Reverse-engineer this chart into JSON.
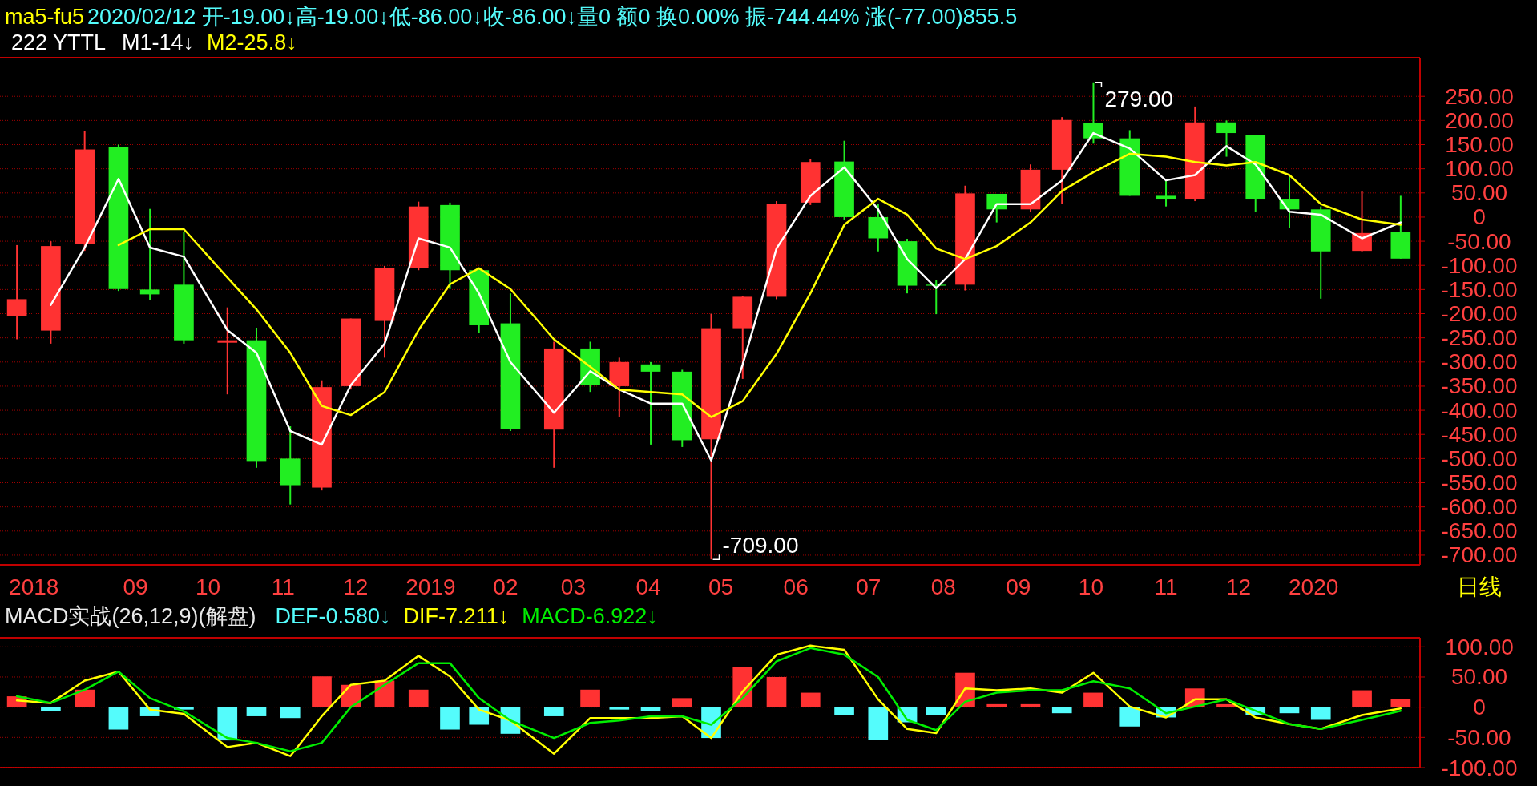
{
  "chart_data": [
    {
      "type": "candlestick",
      "title": "ma5-fu5",
      "subtitle": "2020/02/12 开-19.00↓高-19.00↓低-86.00↓收-86.00↓量0 额0 换0.00% 振-744.44% 涨(-77.00)855.5",
      "x": [
        "2018-07-14",
        "2018-07-28",
        "2018-08-11",
        "2018-08-25",
        "2018-09-07",
        "2018-09-21",
        "2018-10-09",
        "2018-10-21",
        "2018-11-04",
        "2018-11-17",
        "2018-11-29",
        "2018-12-13",
        "2018-12-27",
        "2019-01-09",
        "2019-01-21",
        "2019-02-03",
        "2019-02-21",
        "2019-03-08",
        "2019-03-20",
        "2019-04-02",
        "2019-04-15",
        "2019-04-27",
        "2019-05-10",
        "2019-05-24",
        "2019-06-07",
        "2019-06-21",
        "2019-07-05",
        "2019-07-17",
        "2019-07-29",
        "2019-08-10",
        "2019-08-23",
        "2019-09-06",
        "2019-09-19",
        "2019-10-02",
        "2019-10-17",
        "2019-11-01",
        "2019-11-13",
        "2019-11-26",
        "2019-12-08",
        "2019-12-22",
        "2020-01-04",
        "2020-01-21",
        "2020-02-06"
      ],
      "ohlc": [
        [
          -205,
          -58,
          -253,
          -170
        ],
        [
          -235,
          -50,
          -262,
          -60
        ],
        [
          -55,
          179,
          -70,
          140
        ],
        [
          145,
          150,
          -153,
          -149
        ],
        [
          -150,
          17,
          -172,
          -160
        ],
        [
          -140,
          -30,
          -262,
          -255
        ],
        [
          -260,
          -187,
          -367,
          -255
        ],
        [
          -255,
          -229,
          -519,
          -505
        ],
        [
          -500,
          -433,
          -595,
          -555
        ],
        [
          -560,
          -338,
          -566,
          -352
        ],
        [
          -350,
          -210,
          -357,
          -210
        ],
        [
          -215,
          -101,
          -291,
          -105
        ],
        [
          -105,
          32,
          -110,
          22
        ],
        [
          25,
          30,
          -149,
          -110
        ],
        [
          -110,
          -105,
          -239,
          -224
        ],
        [
          -220,
          -158,
          -443,
          -438
        ],
        [
          -440,
          -258,
          -519,
          -272
        ],
        [
          -272,
          -258,
          -362,
          -348
        ],
        [
          -350,
          -291,
          -414,
          -300
        ],
        [
          -305,
          -300,
          -471,
          -320
        ],
        [
          -320,
          -316,
          -476,
          -462
        ],
        [
          -460,
          -200,
          -709,
          -230
        ],
        [
          -230,
          -163,
          -335,
          -165
        ],
        [
          -165,
          33,
          -170,
          27
        ],
        [
          30,
          120,
          25,
          114
        ],
        [
          115,
          158,
          -5,
          0
        ],
        [
          0,
          27,
          -71,
          -44
        ],
        [
          -50,
          -45,
          -158,
          -142
        ],
        [
          -140,
          -130,
          -201,
          -142
        ],
        [
          -140,
          65,
          -152,
          49
        ],
        [
          48,
          48,
          -11,
          16
        ],
        [
          16,
          109,
          10,
          98
        ],
        [
          98,
          207,
          27,
          201
        ],
        [
          195,
          279,
          152,
          163
        ],
        [
          163,
          180,
          44,
          44
        ],
        [
          44,
          76,
          22,
          38
        ],
        [
          38,
          229,
          33,
          196
        ],
        [
          196,
          200,
          125,
          174
        ],
        [
          170,
          170,
          11,
          38
        ],
        [
          38,
          87,
          -22,
          16
        ],
        [
          16,
          22,
          -169,
          -71
        ],
        [
          -70,
          54,
          -71,
          -33
        ],
        [
          -30,
          44,
          -86,
          -86
        ]
      ],
      "colors": [
        "#ff3232",
        "#ff3232",
        "#ff3232",
        "#22ee22",
        "#22ee22",
        "#22ee22",
        "#ff3232",
        "#22ee22",
        "#22ee22",
        "#ff3232",
        "#ff3232",
        "#ff3232",
        "#ff3232",
        "#22ee22",
        "#22ee22",
        "#22ee22",
        "#ff3232",
        "#22ee22",
        "#ff3232",
        "#22ee22",
        "#22ee22",
        "#ff3232",
        "#ff3232",
        "#ff3232",
        "#ff3232",
        "#22ee22",
        "#22ee22",
        "#22ee22",
        "#22ee22",
        "#ff3232",
        "#22ee22",
        "#ff3232",
        "#ff3232",
        "#22ee22",
        "#22ee22",
        "#22ee22",
        "#ff3232",
        "#22ee22",
        "#22ee22",
        "#22ee22",
        "#22ee22",
        "#ff3232",
        "#22ee22"
      ],
      "series": [
        {
          "name": "M1-14↓",
          "type": "line",
          "color": "#ffffff",
          "values": [
            null,
            -182,
            -63,
            79,
            -63,
            -82,
            -234,
            -281,
            -443,
            -471,
            -348,
            -262,
            -44,
            -63,
            -158,
            -300,
            -405,
            -319,
            -357,
            -386,
            -386,
            -504,
            -305,
            -65,
            44,
            103,
            16,
            -87,
            -147,
            -87,
            27,
            27,
            76,
            174,
            142,
            76,
            87,
            147,
            109,
            11,
            5,
            -44,
            -11
          ]
        },
        {
          "name": "M2-25.8↓",
          "type": "line",
          "color": "#ffff00",
          "values": [
            null,
            null,
            null,
            -58,
            -25,
            -25,
            -125,
            -191,
            -281,
            -391,
            -410,
            -362,
            -234,
            -139,
            -106,
            -149,
            -253,
            -310,
            -357,
            -362,
            -367,
            -414,
            -381,
            -283,
            -158,
            -16,
            38,
            5,
            -65,
            -87,
            -60,
            -11,
            54,
            93,
            131,
            125,
            114,
            107,
            114,
            87,
            27,
            -5,
            -16
          ]
        }
      ],
      "xlim": [
        "2018-07-07",
        "2020-02-14"
      ],
      "xticks": [
        {
          "value": "2018-07-21",
          "label": "2018"
        },
        {
          "value": "2018-09-01",
          "label": "09"
        },
        {
          "value": "2018-10-01",
          "label": "10"
        },
        {
          "value": "2018-11-01",
          "label": "11"
        },
        {
          "value": "2018-12-01",
          "label": "12"
        },
        {
          "value": "2019-01-01",
          "label": "2019"
        },
        {
          "value": "2019-02-01",
          "label": "02"
        },
        {
          "value": "2019-03-01",
          "label": "03"
        },
        {
          "value": "2019-04-01",
          "label": "04"
        },
        {
          "value": "2019-05-01",
          "label": "05"
        },
        {
          "value": "2019-06-01",
          "label": "06"
        },
        {
          "value": "2019-07-01",
          "label": "07"
        },
        {
          "value": "2019-08-01",
          "label": "08"
        },
        {
          "value": "2019-09-01",
          "label": "09"
        },
        {
          "value": "2019-10-01",
          "label": "10"
        },
        {
          "value": "2019-11-01",
          "label": "11"
        },
        {
          "value": "2019-12-01",
          "label": "12"
        },
        {
          "value": "2020-01-01",
          "label": "2020"
        }
      ],
      "ylim": [
        -720,
        330
      ],
      "yticks": [
        {
          "value": 250,
          "label": "250.00"
        },
        {
          "value": 200,
          "label": "200.00"
        },
        {
          "value": 150,
          "label": "150.00"
        },
        {
          "value": 100,
          "label": "100.00"
        },
        {
          "value": 50,
          "label": "50.00"
        },
        0,
        {
          "value": -50,
          "label": "-50.00"
        },
        {
          "value": -100,
          "label": "-100.00"
        },
        {
          "value": -150,
          "label": "-150.00"
        },
        {
          "value": -200,
          "label": "-200.00"
        },
        {
          "value": -250,
          "label": "-250.00"
        },
        {
          "value": -300,
          "label": "-300.00"
        },
        {
          "value": -350,
          "label": "-350.00"
        },
        {
          "value": -400,
          "label": "-400.00"
        },
        {
          "value": -450,
          "label": "-450.00"
        },
        {
          "value": -500,
          "label": "-500.00"
        },
        {
          "value": -550,
          "label": "-550.00"
        },
        {
          "value": -600,
          "label": "-600.00"
        },
        {
          "value": -650,
          "label": "-650.00"
        },
        {
          "value": -700,
          "label": "-700.00"
        }
      ],
      "grid": "y",
      "legend": "top left",
      "annotations": [
        "222 YTTL",
        "日线",
        {
          "text": "279.00",
          "x": "2019-10-02",
          "y": 279
        },
        {
          "text": "-709.00",
          "x": "2019-04-27",
          "y": -709
        }
      ]
    },
    {
      "type": "bar",
      "title": "MACD实战(26,12,9)(解盘)",
      "x": [
        "2018-07-14",
        "2018-07-28",
        "2018-08-11",
        "2018-08-25",
        "2018-09-07",
        "2018-09-21",
        "2018-10-09",
        "2018-10-21",
        "2018-11-04",
        "2018-11-17",
        "2018-11-29",
        "2018-12-13",
        "2018-12-27",
        "2019-01-09",
        "2019-01-21",
        "2019-02-03",
        "2019-02-21",
        "2019-03-08",
        "2019-03-20",
        "2019-04-02",
        "2019-04-15",
        "2019-04-27",
        "2019-05-10",
        "2019-05-24",
        "2019-06-07",
        "2019-06-21",
        "2019-07-05",
        "2019-07-17",
        "2019-07-29",
        "2019-08-10",
        "2019-08-23",
        "2019-09-06",
        "2019-09-19",
        "2019-10-02",
        "2019-10-17",
        "2019-11-01",
        "2019-11-13",
        "2019-11-26",
        "2019-12-08",
        "2019-12-22",
        "2020-01-04",
        "2020-01-21",
        "2020-02-06"
      ],
      "series": [
        {
          "name": "DEF-0.580↓",
          "type": "bar",
          "color": "#54fcfc",
          "colors": [
            "#ff3232",
            "#54fcfc",
            "#ff3232",
            "#54fcfc",
            "#54fcfc",
            "#54fcfc",
            "#54fcfc",
            "#54fcfc",
            "#54fcfc",
            "#ff3232",
            "#ff3232",
            "#ff3232",
            "#ff3232",
            "#54fcfc",
            "#54fcfc",
            "#54fcfc",
            "#54fcfc",
            "#ff3232",
            "#54fcfc",
            "#54fcfc",
            "#ff3232",
            "#54fcfc",
            "#ff3232",
            "#ff3232",
            "#ff3232",
            "#54fcfc",
            "#54fcfc",
            "#54fcfc",
            "#54fcfc",
            "#ff3232",
            "#ff3232",
            "#ff3232",
            "#54fcfc",
            "#ff3232",
            "#54fcfc",
            "#54fcfc",
            "#ff3232",
            "#ff3232",
            "#54fcfc",
            "#54fcfc",
            "#54fcfc",
            "#ff3232",
            "#ff3232"
          ],
          "values": [
            18,
            -7,
            29,
            -37,
            -15,
            -4,
            -55,
            -15,
            -18,
            51,
            37,
            44,
            29,
            -37,
            -29,
            -44,
            -15,
            29,
            -4,
            -7,
            15,
            -51,
            66,
            50,
            24,
            -13,
            -54,
            -25,
            -13,
            57,
            5,
            5,
            -10,
            24,
            -32,
            -17,
            31,
            5,
            -13,
            -10,
            -21,
            28,
            13
          ]
        },
        {
          "name": "DIF-7.211↓",
          "type": "line",
          "color": "#ffff00",
          "values": [
            11,
            7,
            44,
            59,
            -4,
            -11,
            -66,
            -59,
            -81,
            -15,
            37,
            44,
            85,
            51,
            -4,
            -22,
            -77,
            -18,
            -18,
            -18,
            -15,
            -51,
            26,
            87,
            102,
            95,
            13,
            -36,
            -43,
            31,
            28,
            31,
            24,
            57,
            1,
            -17,
            13,
            13,
            -17,
            -28,
            -36,
            -13,
            -2
          ]
        },
        {
          "name": "MACD-6.922↓",
          "type": "line",
          "color": "#00ee00",
          "values": [
            18,
            7,
            29,
            59,
            15,
            -7,
            -51,
            -59,
            -73,
            -59,
            0,
            37,
            73,
            73,
            15,
            -22,
            -51,
            -26,
            -22,
            -15,
            -15,
            -29,
            15,
            76,
            98,
            87,
            50,
            -21,
            -38,
            9,
            24,
            28,
            28,
            43,
            31,
            -10,
            1,
            13,
            -6,
            -28,
            -36,
            -21,
            -6
          ]
        }
      ],
      "xlim": [
        "2018-07-07",
        "2020-02-14"
      ],
      "ylim": [
        -100,
        115
      ],
      "yticks": [
        {
          "value": 100,
          "label": "100.00"
        },
        {
          "value": 50,
          "label": "50.00"
        },
        0,
        {
          "value": -50,
          "label": "-50.00"
        },
        {
          "value": -100,
          "label": "-100.00"
        }
      ],
      "grid": "y",
      "legend": "top left",
      "tick_labels": "y"
    }
  ]
}
